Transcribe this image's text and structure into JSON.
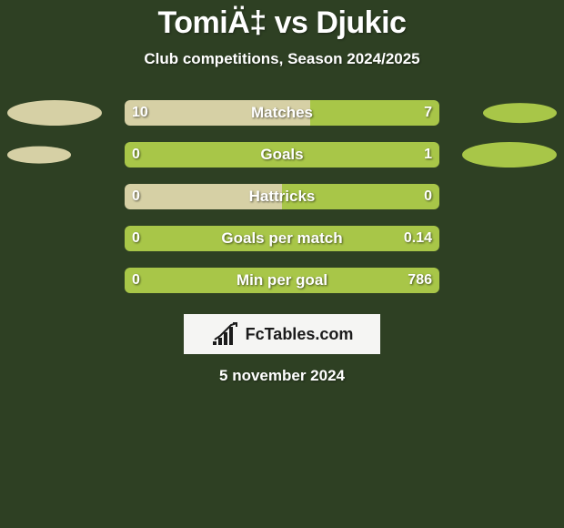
{
  "background_color": "#2e4023",
  "title": "TomiÄ‡ vs Djukic",
  "subtitle": "Club competitions, Season 2024/2025",
  "date": "5 november 2024",
  "brand": "FcTables.com",
  "colors": {
    "left": "#d6d0a5",
    "right": "#a8c648",
    "track": "#1e2a18",
    "ellipse_left": "#d6d0a5",
    "ellipse_right": "#a8c648"
  },
  "ellipse_max_width": 104,
  "ellipse_max_height": 28,
  "stats": [
    {
      "label": "Matches",
      "left_value": "10",
      "right_value": "7",
      "left_num": 10,
      "right_num": 7,
      "ellipse_left_scale": 1.0,
      "ellipse_right_scale": 0.78
    },
    {
      "label": "Goals",
      "left_value": "0",
      "right_value": "1",
      "left_num": 0,
      "right_num": 1,
      "ellipse_left_scale": 0.67,
      "ellipse_right_scale": 1.0
    },
    {
      "label": "Hattricks",
      "left_value": "0",
      "right_value": "0",
      "left_num": 0,
      "right_num": 0,
      "ellipse_left_scale": 0,
      "ellipse_right_scale": 0
    },
    {
      "label": "Goals per match",
      "left_value": "0",
      "right_value": "0.14",
      "left_num": 0,
      "right_num": 0.14,
      "ellipse_left_scale": 0,
      "ellipse_right_scale": 0
    },
    {
      "label": "Min per goal",
      "left_value": "0",
      "right_value": "786",
      "left_num": 0,
      "right_num": 786,
      "ellipse_left_scale": 0,
      "ellipse_right_scale": 0
    }
  ]
}
